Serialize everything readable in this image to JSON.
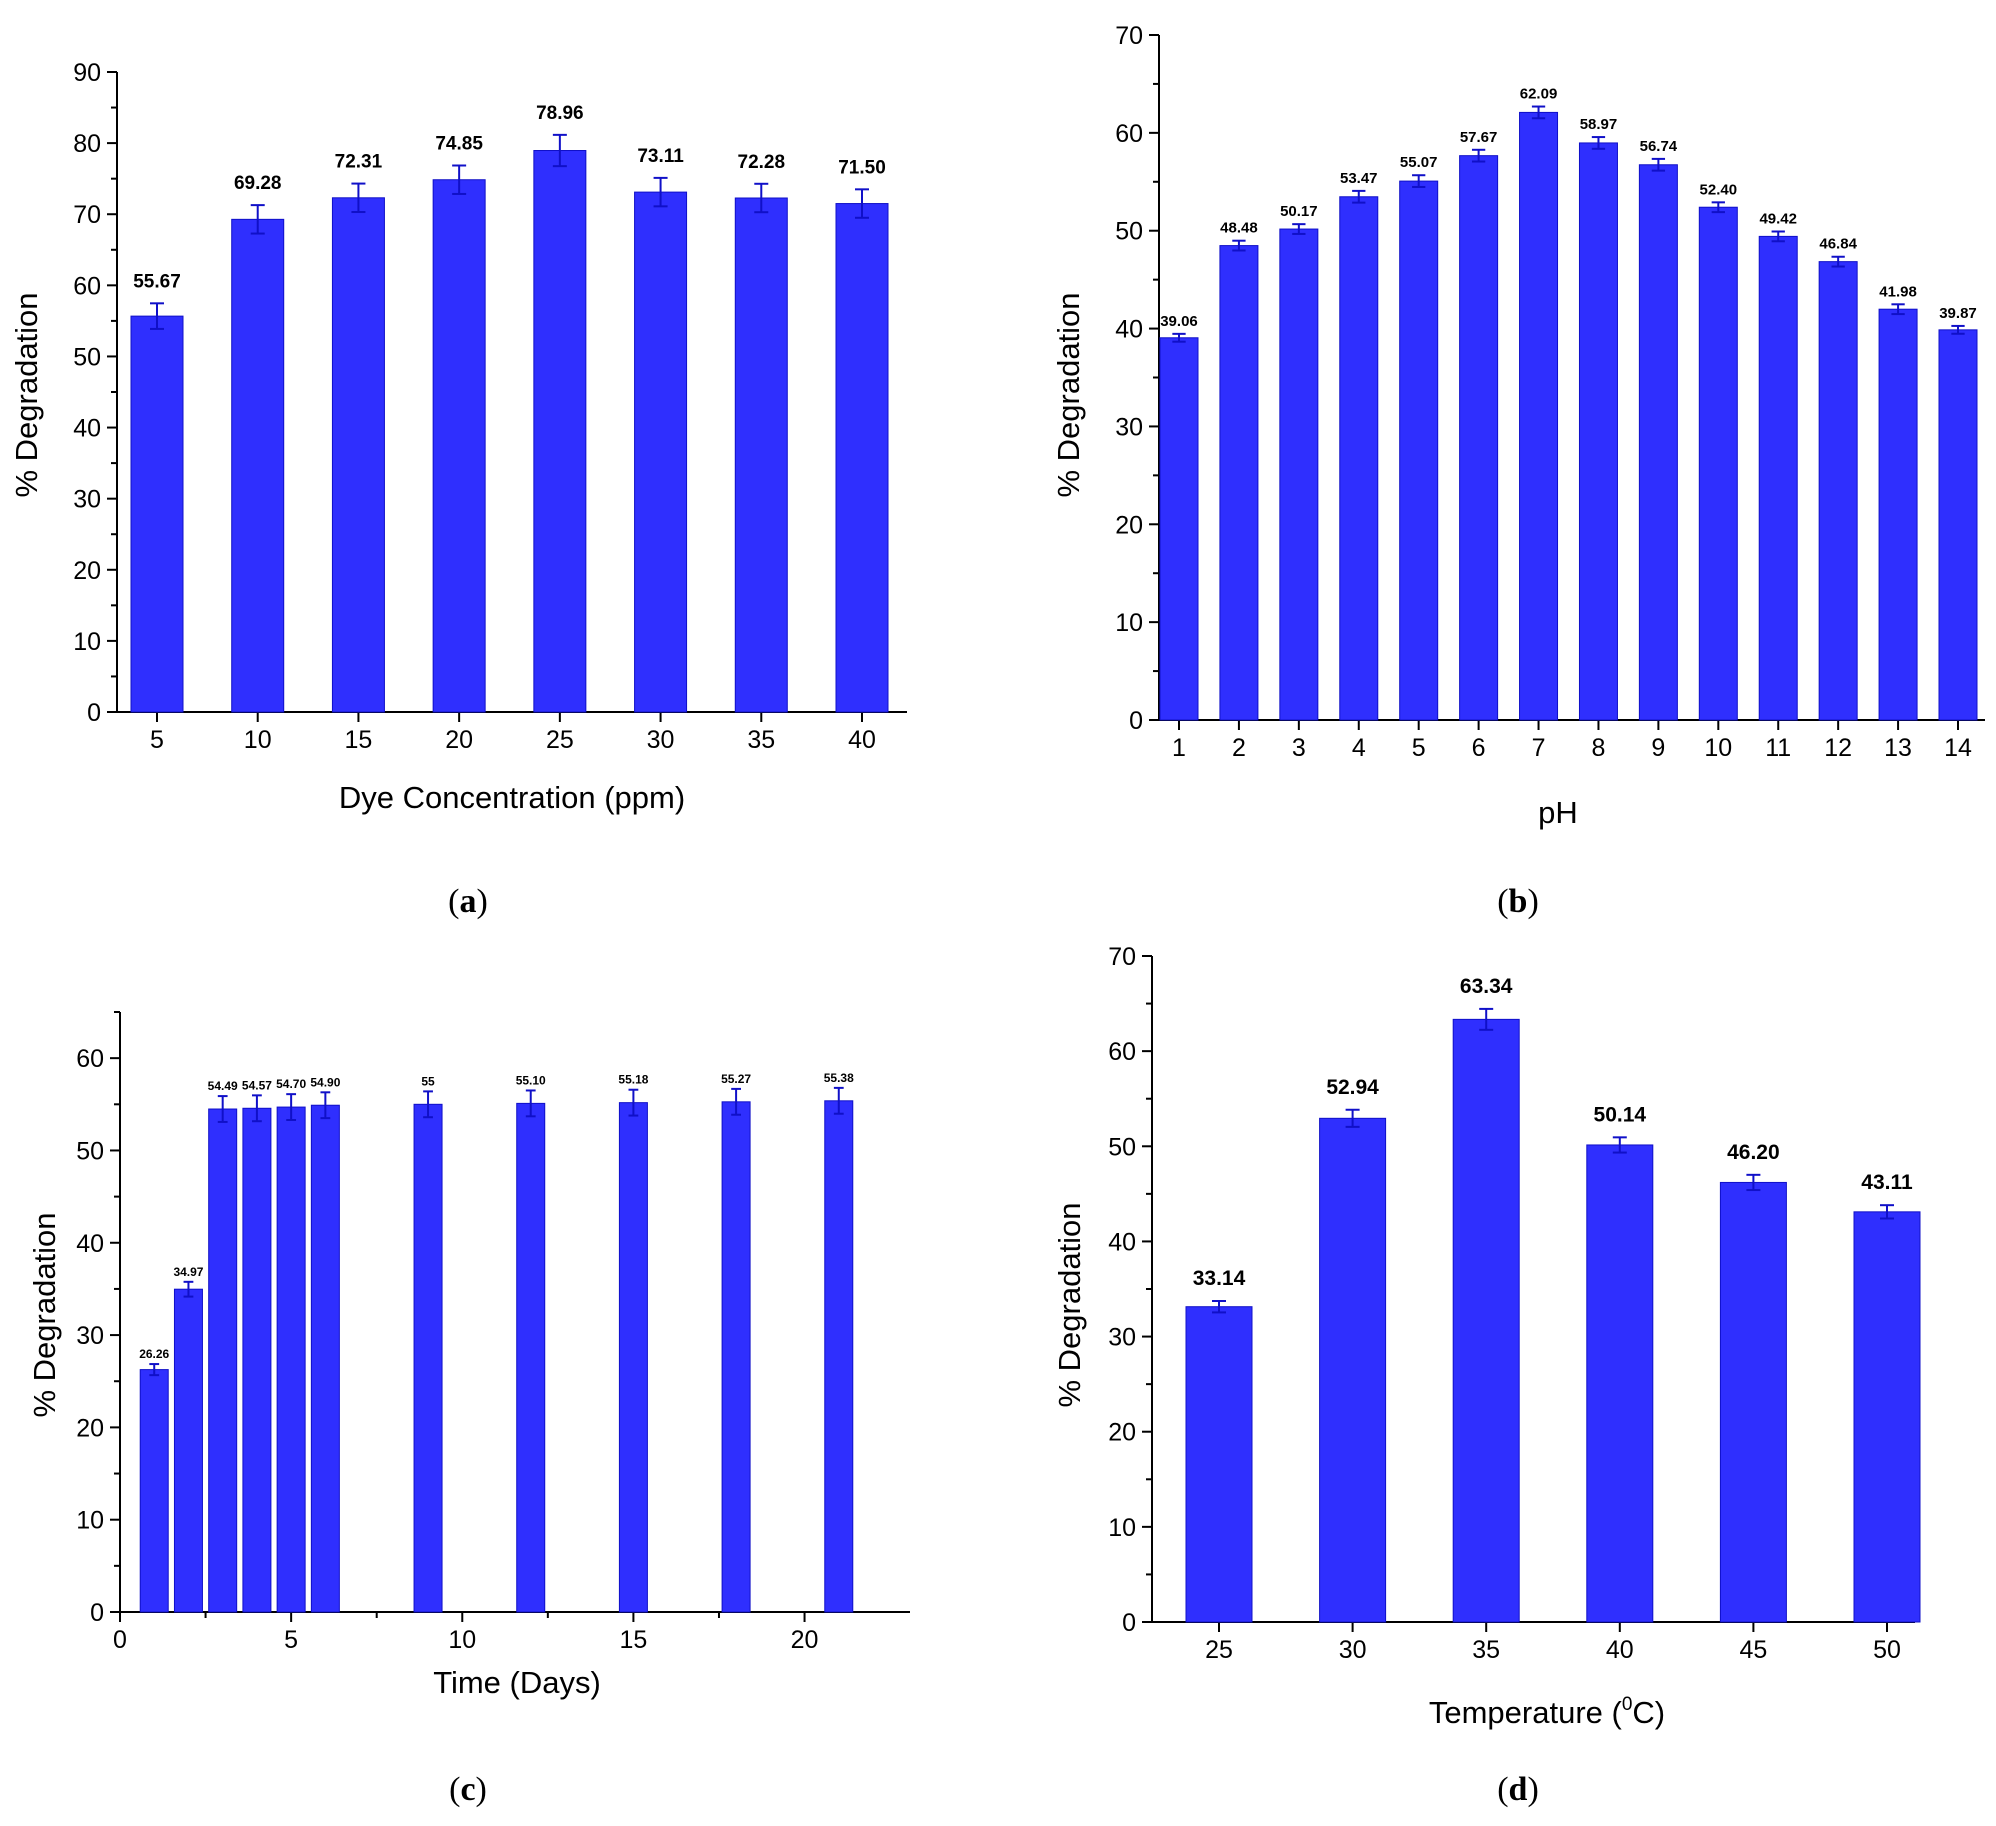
{
  "colors": {
    "bar": "#2f2ffe",
    "bar_edge": "#1010c8",
    "label_green": "#1f4e2a",
    "label_black": "#000000"
  },
  "chart_data": [
    {
      "id": "a",
      "panel_label": "a",
      "type": "bar",
      "categories": [
        "5",
        "10",
        "15",
        "20",
        "25",
        "30",
        "35",
        "40"
      ],
      "values": [
        55.67,
        69.28,
        72.31,
        74.85,
        78.96,
        73.11,
        72.28,
        71.5
      ],
      "errors": [
        1.8,
        2.0,
        2.0,
        2.0,
        2.2,
        2.0,
        2.0,
        2.0
      ],
      "data_labels": [
        "55.67",
        "69.28",
        "72.31",
        "74.85",
        "78.96",
        "73.11",
        "72.28",
        "71.50"
      ],
      "xlabel": "Dye Concentration (ppm)",
      "ylabel": "% Degradation",
      "ylim": [
        0,
        90
      ],
      "yticks": [
        0,
        10,
        20,
        30,
        40,
        50,
        60,
        70,
        80,
        90
      ],
      "label_color": "#000000"
    },
    {
      "id": "b",
      "panel_label": "b",
      "type": "bar",
      "categories": [
        "1",
        "2",
        "3",
        "4",
        "5",
        "6",
        "7",
        "8",
        "9",
        "10",
        "11",
        "12",
        "13",
        "14"
      ],
      "values": [
        39.06,
        48.48,
        50.17,
        53.47,
        55.07,
        57.67,
        62.09,
        58.97,
        56.74,
        52.4,
        49.42,
        46.84,
        41.98,
        39.87
      ],
      "errors": [
        0.4,
        0.5,
        0.5,
        0.6,
        0.6,
        0.6,
        0.6,
        0.6,
        0.6,
        0.5,
        0.5,
        0.5,
        0.5,
        0.4
      ],
      "data_labels": [
        "39.06",
        "48.48",
        "50.17",
        "53.47",
        "55.07",
        "57.67",
        "62.09",
        "58.97",
        "56.74",
        "52.40",
        "49.42",
        "46.84",
        "41.98",
        "39.87"
      ],
      "xlabel": "pH",
      "ylabel": "% Degradation",
      "ylim": [
        0,
        70
      ],
      "yticks": [
        0,
        10,
        20,
        30,
        40,
        50,
        60,
        70
      ],
      "label_color": "#1f4e2a"
    },
    {
      "id": "c",
      "panel_label": "c",
      "type": "bar",
      "x": [
        1,
        2,
        3,
        4,
        5,
        6,
        9,
        12,
        15,
        18,
        21
      ],
      "values": [
        26.26,
        34.97,
        54.49,
        54.57,
        54.7,
        54.9,
        55,
        55.1,
        55.18,
        55.27,
        55.38
      ],
      "errors": [
        0.6,
        0.8,
        1.4,
        1.4,
        1.4,
        1.4,
        1.4,
        1.4,
        1.4,
        1.4,
        1.4
      ],
      "data_labels": [
        "26.26",
        "34.97",
        "54.49",
        "54.57",
        "54.70",
        "54.90",
        "55",
        "55.10",
        "55.18",
        "55.27",
        "55.38"
      ],
      "xlabel": "Time (Days)",
      "ylabel": "% Degradation",
      "xlim": [
        0,
        22
      ],
      "xticks": [
        0,
        5,
        10,
        15,
        20
      ],
      "ylim": [
        0,
        65
      ],
      "yticks": [
        0,
        10,
        20,
        30,
        40,
        50,
        60
      ],
      "label_color": "#000000"
    },
    {
      "id": "d",
      "panel_label": "d",
      "type": "bar",
      "categories": [
        "25",
        "30",
        "35",
        "40",
        "45",
        "50"
      ],
      "values": [
        33.14,
        52.94,
        63.34,
        50.14,
        46.2,
        43.11
      ],
      "errors": [
        0.6,
        0.9,
        1.1,
        0.8,
        0.8,
        0.7
      ],
      "data_labels": [
        "33.14",
        "52.94",
        "63.34",
        "50.14",
        "46.20",
        "43.11"
      ],
      "xlabel": "Temperature (",
      "xlabel_sup": "0",
      "xlabel_end": "C)",
      "ylabel": "% Degradation",
      "ylim": [
        0,
        70
      ],
      "yticks": [
        0,
        10,
        20,
        30,
        40,
        50,
        60,
        70
      ],
      "label_color": "#000000"
    }
  ]
}
